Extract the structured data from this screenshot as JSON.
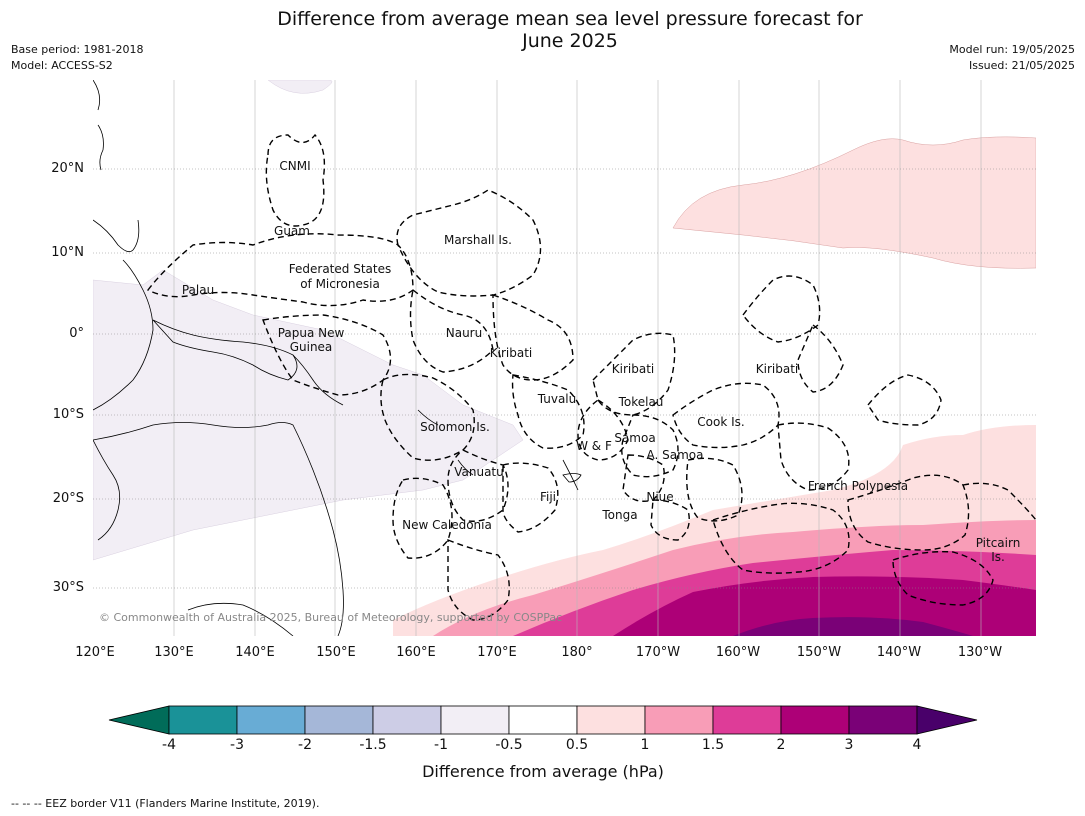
{
  "title_line1": "Difference from average mean sea level pressure forecast for",
  "title_line2": "June 2025",
  "meta": {
    "base_period": "Base period: 1981-2018",
    "model": "Model: ACCESS-S2",
    "model_run": "Model run: 19/05/2025",
    "issued": "Issued: 21/05/2025"
  },
  "lat_labels": [
    "20°N",
    "10°N",
    "0°",
    "10°S",
    "20°S",
    "30°S"
  ],
  "lon_labels": [
    "120°E",
    "130°E",
    "140°E",
    "150°E",
    "160°E",
    "170°E",
    "180°",
    "170°W",
    "160°W",
    "150°W",
    "140°W",
    "130°W"
  ],
  "places": {
    "cnmi": "CNMI",
    "guam": "Guam",
    "marshall": "Marshall Is.",
    "fsm1": "Federated States",
    "fsm2": "of Micronesia",
    "palau": "Palau",
    "png1": "Papua New",
    "png2": "Guinea",
    "nauru": "Nauru",
    "kiribati_w": "Kiribati",
    "kiribati_c": "Kiribati",
    "kiribati_e": "Kiribati",
    "tuvalu": "Tuvalu",
    "tokelau": "Tokelau",
    "cook": "Cook Is.",
    "solomon": "Solomon Is.",
    "wf": "W & F",
    "samoa": "Samoa",
    "asamoa": "A. Samoa",
    "vanuatu": "Vanuatu",
    "fiji": "Fiji",
    "niue": "Niue",
    "tonga": "Tonga",
    "frenchpoly": "French Polynesia",
    "newcal": "New Caledonia",
    "pitcairn1": "Pitcairn",
    "pitcairn2": "Is."
  },
  "copyright": "© Commonwealth of Australia 2025, Bureau of Meteorology, supported by COSPPac",
  "colorbar": {
    "ticks": [
      "-4",
      "-3",
      "-2",
      "-1.5",
      "-1",
      "-0.5",
      "0.5",
      "1",
      "1.5",
      "2",
      "3",
      "4"
    ],
    "colors": [
      "#1a9298",
      "#68acd5",
      "#a5b7d8",
      "#cdcde6",
      "#f2eef5",
      "#ffffff",
      "#fde0e0",
      "#f89db7",
      "#de3c98",
      "#ad0077",
      "#7a0177"
    ],
    "low_extend_color": "#016c59",
    "high_extend_color": "#49006a",
    "label": "Difference from average (hPa)"
  },
  "footer": "--  --  -- EEZ border V11 (Flanders Marine Institute, 2019)."
}
